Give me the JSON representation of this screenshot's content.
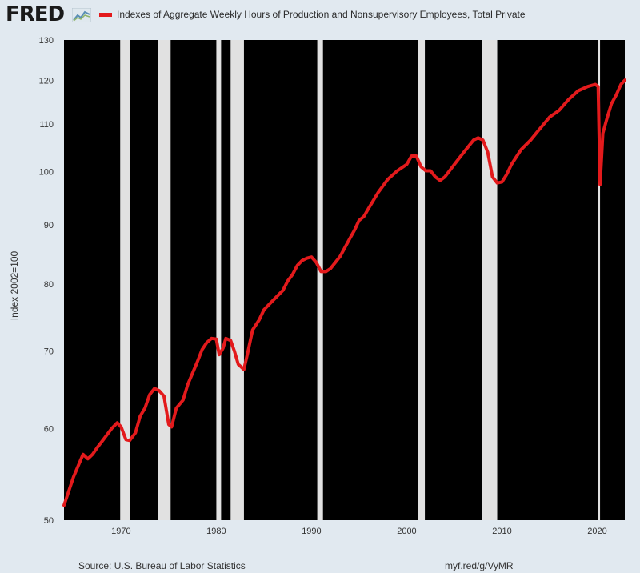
{
  "header": {
    "logo": "FRED",
    "logo_icon": "line-chart-icon"
  },
  "chart_data": {
    "type": "line",
    "series": [
      {
        "name": "Indexes of Aggregate Weekly Hours of Production and Nonsupervisory Employees, Total Private",
        "color": "#e31a1c",
        "x": [
          1964.0,
          1965.0,
          1966.0,
          1966.5,
          1967.0,
          1967.5,
          1968.0,
          1969.0,
          1969.6,
          1970.0,
          1970.5,
          1970.9,
          1971.5,
          1972.0,
          1972.5,
          1973.0,
          1973.5,
          1974.0,
          1974.5,
          1975.0,
          1975.3,
          1975.8,
          1976.5,
          1977.0,
          1977.5,
          1978.0,
          1978.5,
          1979.0,
          1979.5,
          1980.0,
          1980.3,
          1980.7,
          1981.0,
          1981.5,
          1981.9,
          1982.3,
          1982.9,
          1983.3,
          1983.8,
          1984.5,
          1985.0,
          1986.0,
          1987.0,
          1987.5,
          1988.0,
          1988.5,
          1989.0,
          1989.5,
          1990.0,
          1990.5,
          1991.0,
          1991.5,
          1992.0,
          1993.0,
          1994.0,
          1994.5,
          1995.0,
          1995.5,
          1996.0,
          1997.0,
          1998.0,
          1999.0,
          2000.0,
          2000.5,
          2001.0,
          2001.5,
          2002.0,
          2002.5,
          2003.0,
          2003.5,
          2004.0,
          2005.0,
          2006.0,
          2007.0,
          2007.5,
          2008.0,
          2008.5,
          2009.0,
          2009.5,
          2010.0,
          2010.5,
          2011.0,
          2012.0,
          2013.0,
          2014.0,
          2015.0,
          2016.0,
          2017.0,
          2018.0,
          2019.0,
          2019.8,
          2020.1,
          2020.3,
          2020.6,
          2021.0,
          2021.5,
          2022.0,
          2022.5,
          2022.9
        ],
        "values": [
          51.5,
          54.5,
          57.0,
          56.5,
          57.0,
          57.8,
          58.5,
          60.0,
          60.7,
          60.2,
          58.7,
          58.6,
          59.5,
          61.5,
          62.5,
          64.2,
          65.0,
          64.7,
          64.0,
          60.5,
          60.2,
          62.5,
          63.5,
          65.5,
          67.0,
          68.5,
          70.2,
          71.2,
          71.8,
          71.7,
          69.5,
          70.4,
          71.8,
          71.5,
          70.0,
          68.2,
          67.5,
          69.8,
          73.0,
          74.5,
          76.0,
          77.5,
          79.0,
          80.5,
          81.5,
          83.0,
          83.8,
          84.2,
          84.4,
          83.5,
          82.0,
          82.0,
          82.5,
          84.5,
          87.5,
          89.0,
          90.8,
          91.5,
          93.0,
          96.0,
          98.5,
          100.2,
          101.5,
          103.2,
          103.2,
          101.0,
          100.2,
          100.2,
          99.0,
          98.3,
          99.0,
          101.5,
          104.0,
          106.5,
          107.0,
          106.5,
          104.0,
          99.0,
          97.8,
          98.0,
          99.5,
          101.5,
          104.5,
          106.5,
          109.0,
          111.5,
          113.0,
          115.5,
          117.5,
          118.5,
          119.0,
          118.5,
          97.5,
          108.0,
          111.0,
          114.5,
          116.5,
          119.0,
          120.0
        ]
      }
    ],
    "recessions": [
      [
        1969.9,
        1970.9
      ],
      [
        1973.9,
        1975.2
      ],
      [
        1980.0,
        1980.5
      ],
      [
        1981.5,
        1982.9
      ],
      [
        1990.6,
        1991.2
      ],
      [
        2001.2,
        2001.9
      ],
      [
        2007.9,
        2009.5
      ],
      [
        2020.1,
        2020.3
      ]
    ],
    "xlim": [
      1964,
      2022.9
    ],
    "ylim": [
      50,
      130
    ],
    "yscale": "log",
    "xticks": [
      1970,
      1980,
      1990,
      2000,
      2010,
      2020
    ],
    "yticks": [
      50,
      60,
      70,
      80,
      90,
      100,
      110,
      120,
      130
    ],
    "ylabel": "Index 2002=100",
    "xlabel": "",
    "background": "#000000",
    "recession_color": "#e1e1e1",
    "grid": false,
    "legend": "top"
  },
  "footer": {
    "source": "Source: U.S. Bureau of Labor Statistics",
    "shortlink": "myf.red/g/VyMR"
  }
}
